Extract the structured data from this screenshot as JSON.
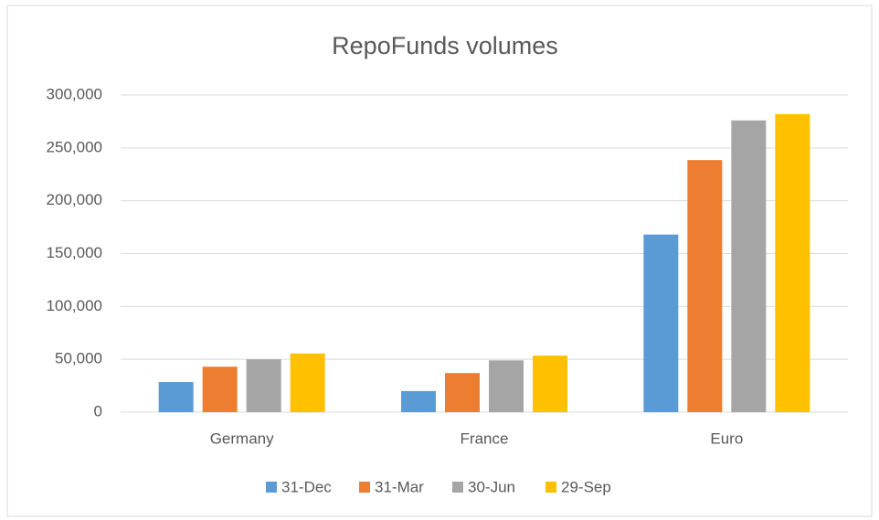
{
  "chart_data": {
    "type": "bar",
    "title": "RepoFunds volumes",
    "categories": [
      "Germany",
      "France",
      "Euro"
    ],
    "series": [
      {
        "name": "31-Dec",
        "color": "#5b9bd5",
        "values": [
          28500,
          20000,
          168000
        ]
      },
      {
        "name": "31-Mar",
        "color": "#ed7d31",
        "values": [
          43000,
          37000,
          238500
        ]
      },
      {
        "name": "30-Jun",
        "color": "#a5a5a5",
        "values": [
          50000,
          49000,
          276000
        ]
      },
      {
        "name": "29-Sep",
        "color": "#ffc000",
        "values": [
          55500,
          53500,
          282000
        ]
      }
    ],
    "ylim": [
      0,
      300000
    ],
    "yticks": [
      0,
      {
        "value": 50000,
        "label": "50,000"
      },
      {
        "value": 100000,
        "label": "100,000"
      },
      {
        "value": 150000,
        "label": "150,000"
      },
      {
        "value": 200000,
        "label": "200,000"
      },
      {
        "value": 250000,
        "label": "250,000"
      },
      {
        "value": 300000,
        "label": "300,000"
      }
    ],
    "grid": true,
    "legend": "bottom"
  }
}
